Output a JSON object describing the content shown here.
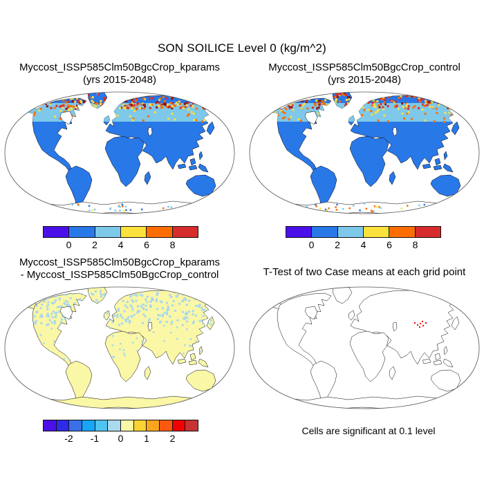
{
  "figure": {
    "title": "SON SOILICE Level 0 (kg/m^2)",
    "background": "#ffffff"
  },
  "panels": {
    "top_left": {
      "title_line1": "Myccost_ISSP585Clm50BgcCrop_kparams",
      "title_line2": "(yrs 2015-2048)"
    },
    "top_right": {
      "title_line1": "Myccost_ISSP585Clm50BgcCrop_control",
      "title_line2": "(yrs 2015-2048)"
    },
    "bottom_left": {
      "title_line1": "Myccost_ISSP585Clm50BgcCrop_kparams",
      "title_line2": "- Myccost_ISSP585Clm50BgcCrop_control"
    },
    "bottom_right": {
      "title": "T-Test of two Case means at each grid point",
      "caption": "Cells are significant at 0.1 level"
    }
  },
  "colorbars": {
    "mean": {
      "colors": [
        "#4B0FE8",
        "#2878E8",
        "#7EC8EA",
        "#FBE13C",
        "#FD6D00",
        "#D62C2C"
      ],
      "tick_labels": [
        "0",
        "2",
        "4",
        "6",
        "8"
      ],
      "tick_boundaries": [
        1,
        2,
        3,
        4,
        5
      ]
    },
    "diff": {
      "colors": [
        "#4B0FE8",
        "#2B2BE8",
        "#3A6FE8",
        "#18A5F5",
        "#4FC4F0",
        "#ABD9EE",
        "#FAF7A6",
        "#FBD334",
        "#FAA51E",
        "#FA5A10",
        "#F00000",
        "#C83232"
      ],
      "tick_labels": [
        "-2",
        "-1",
        "0",
        "1",
        "2"
      ],
      "tick_boundaries": [
        2,
        4,
        6,
        8,
        10
      ]
    }
  },
  "palette": {
    "land_mean": "#2878E8",
    "band_mean": "#7EC8EA",
    "arctic_speckles": [
      "#D62C2C",
      "#8C1616",
      "#FD6D00",
      "#FBE13C",
      "#D62C2C"
    ],
    "midband_speckles": [
      "#FBE13C",
      "#FD6D00"
    ],
    "antarctic_coast_speckles": [
      "#2878E8",
      "#FBE13C",
      "#FD6D00",
      "#7EC8EA"
    ],
    "land_diff": "#FAF7A6",
    "diff_speckle": "#A9D7EE",
    "land_ttest": "#FFFFFF",
    "significant_red": "#F00000",
    "coastline": "#000000",
    "map_frame": "#555555"
  },
  "chart_data": [
    {
      "type": "heatmap",
      "subtype": "filled-contour-global-map",
      "panel": "top-left",
      "title": "Myccost_ISSP585Clm50BgcCrop_kparams",
      "subtitle": "(yrs 2015-2048)",
      "variable": "SON SOILICE Level 0 (kg/m^2)",
      "season": "SON",
      "projection": "robinson",
      "levels": [
        0,
        2,
        4,
        6,
        8
      ],
      "colors": [
        "#4B0FE8",
        "#2878E8",
        "#7EC8EA",
        "#FBE13C",
        "#FD6D00",
        "#D62C2C"
      ],
      "pattern": "Land mostly 0-2 kg/m^2 (blue); 2-4 (light blue) band across ~50-65N; 4 to >8 (yellow, orange, red, dark red) over Arctic Canada, Greenland margins, Scandinavia and northern Siberia; scattered colored cells along Antarctic coast; oceans masked white."
    },
    {
      "type": "heatmap",
      "subtype": "filled-contour-global-map",
      "panel": "top-right",
      "title": "Myccost_ISSP585Clm50BgcCrop_control",
      "subtitle": "(yrs 2015-2048)",
      "variable": "SON SOILICE Level 0 (kg/m^2)",
      "season": "SON",
      "projection": "robinson",
      "levels": [
        0,
        2,
        4,
        6,
        8
      ],
      "colors": [
        "#4B0FE8",
        "#2878E8",
        "#7EC8EA",
        "#FBE13C",
        "#FD6D00",
        "#D62C2C"
      ],
      "pattern": "Nearly identical to kparams panel: blue land, light-blue subarctic band, red/orange Arctic maximum."
    },
    {
      "type": "heatmap",
      "subtype": "difference-map",
      "panel": "bottom-left",
      "title": "Myccost_ISSP585Clm50BgcCrop_kparams - Myccost_ISSP585Clm50BgcCrop_control",
      "levels": [
        -2.5,
        -2,
        -1.5,
        -1,
        -0.5,
        0,
        0.5,
        1,
        1.5,
        2,
        2.5
      ],
      "tick_labels": [
        "-2",
        "-1",
        "0",
        "1",
        "2"
      ],
      "colors": [
        "#4B0FE8",
        "#2B2BE8",
        "#3A6FE8",
        "#18A5F5",
        "#4FC4F0",
        "#ABD9EE",
        "#FAF7A6",
        "#FBD334",
        "#FAA51E",
        "#FA5A10",
        "#F00000",
        "#C83232"
      ],
      "pattern": "Differences near zero: land mostly 0 to +0.5 (pale yellow) with many scattered -0.5 to 0 (pale blue) speckles over northern mid and high latitudes (Canada, Europe, Russia), sparse speckles elsewhere."
    },
    {
      "type": "scatter",
      "subtype": "significance-map",
      "panel": "bottom-right",
      "title": "T-Test of two Case means at each grid point",
      "caption": "Cells are significant at 0.1 level",
      "significant_color": "#F00000",
      "significant_cells_viewbox": [
        [
          240,
          55
        ],
        [
          244,
          58
        ],
        [
          248,
          56
        ],
        [
          252,
          59
        ],
        [
          256,
          55
        ],
        [
          247,
          61
        ],
        [
          251,
          53
        ]
      ],
      "pattern": "Coastline-only world map; only a small cluster of significant grid cells (red) over the Tibetan Plateau region (~85-95E, 30-40N)."
    }
  ]
}
